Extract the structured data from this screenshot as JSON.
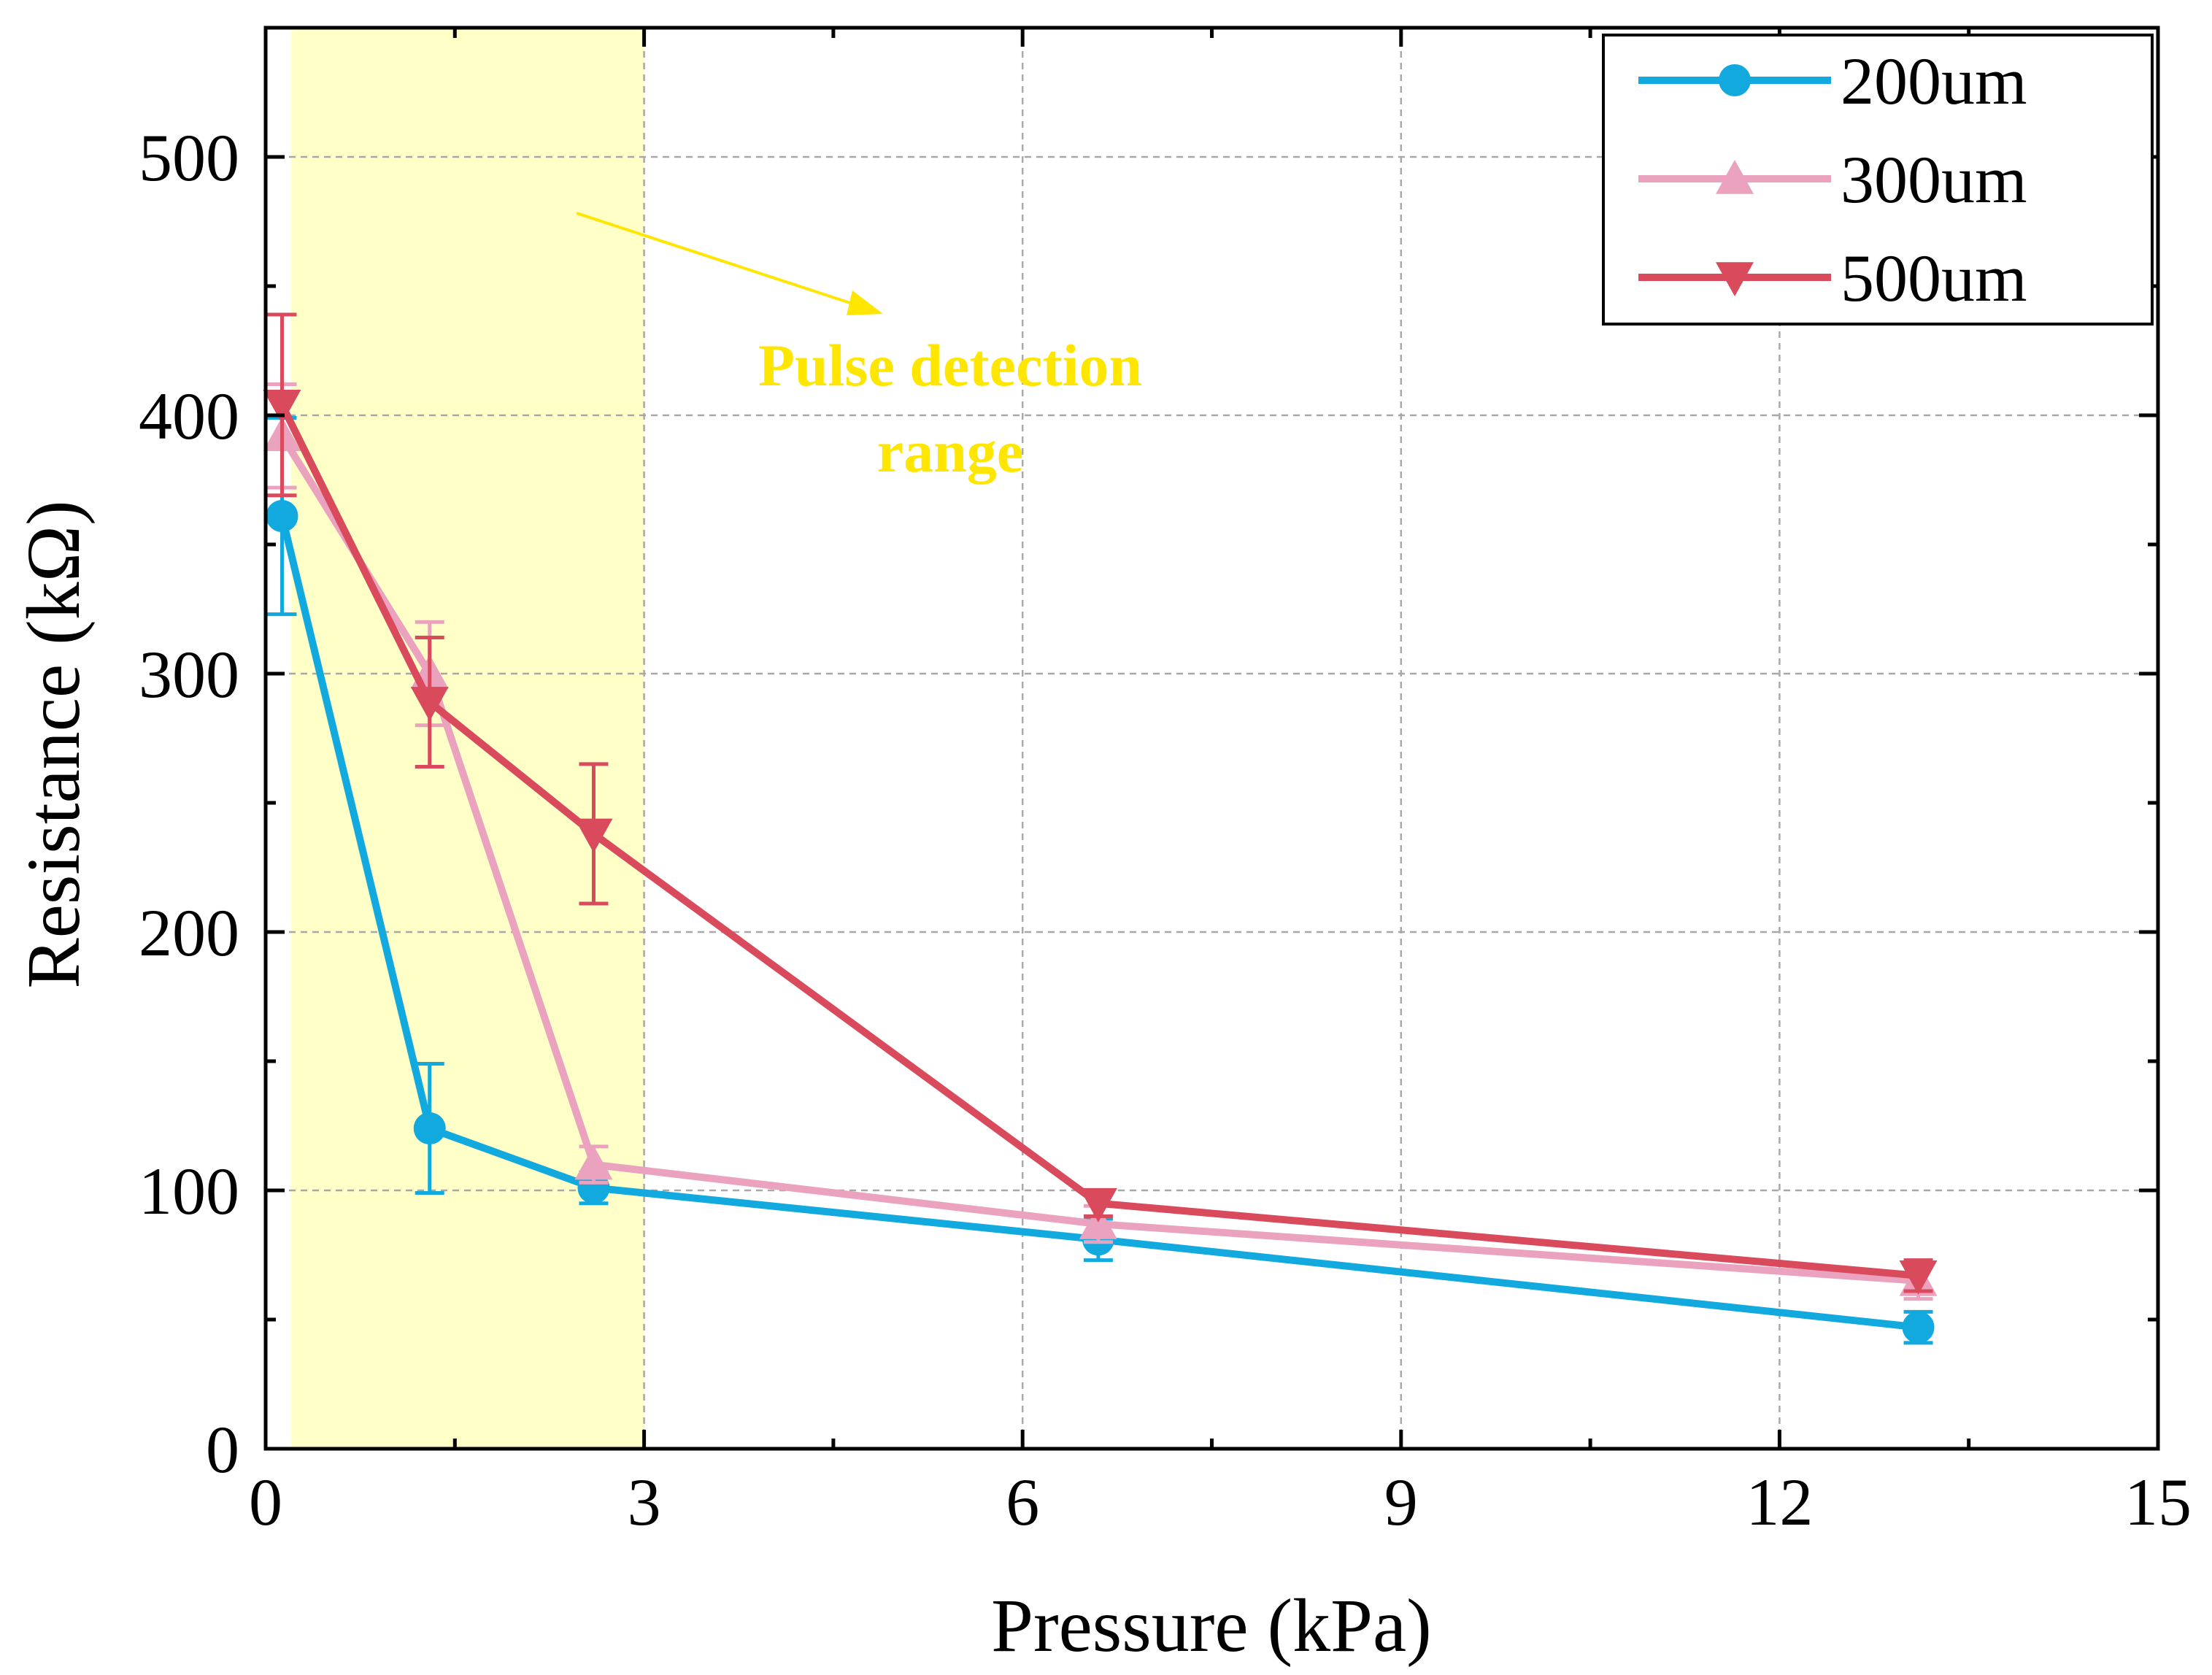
{
  "chart_data": {
    "type": "line",
    "xlabel": "Pressure (kPa)",
    "ylabel": "Resistance (kΩ)",
    "xlim": [
      0,
      15
    ],
    "ylim": [
      0,
      550
    ],
    "xticks": [
      "0",
      "3",
      "6",
      "9",
      "12",
      "15"
    ],
    "yticks": [
      "0",
      "100",
      "200",
      "300",
      "400",
      "500"
    ],
    "grid": true,
    "legend_position": "top-right",
    "highlight": {
      "x_range": [
        0.2,
        3.0
      ],
      "label_lines": [
        "Pulse detection",
        "range"
      ],
      "color": "#ffffc8",
      "text_color": "#ffe600"
    },
    "series": [
      {
        "name": "200um",
        "marker": "circle",
        "color": "#11a9de",
        "x": [
          0.13,
          1.3,
          2.6,
          6.6,
          13.1
        ],
        "y": [
          361,
          124,
          101,
          81,
          47
        ],
        "err": [
          38,
          25,
          6,
          8,
          6
        ]
      },
      {
        "name": "300um",
        "marker": "triangle-up",
        "color": "#eaa2bf",
        "x": [
          0.13,
          1.3,
          2.6,
          6.6,
          13.1
        ],
        "y": [
          392,
          300,
          110,
          87,
          65
        ],
        "err": [
          20,
          20,
          7,
          7,
          7
        ]
      },
      {
        "name": "500um",
        "marker": "triangle-down",
        "color": "#d84a5c",
        "x": [
          0.13,
          1.3,
          2.6,
          6.6,
          13.1
        ],
        "y": [
          404,
          289,
          238,
          95,
          67
        ],
        "err": [
          35,
          25,
          27,
          5,
          6
        ]
      }
    ]
  }
}
